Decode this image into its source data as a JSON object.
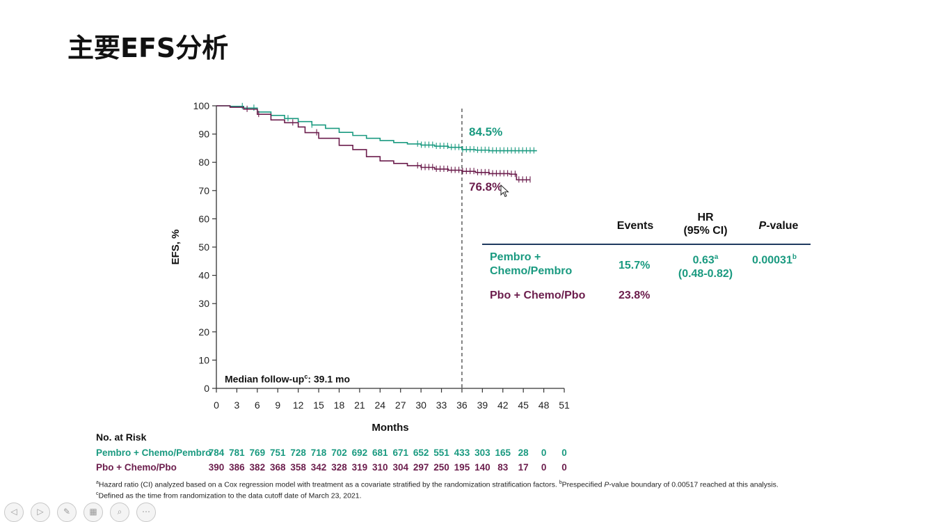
{
  "slide": {
    "title": "主要EFS分析"
  },
  "chart_data": {
    "type": "line",
    "xlabel": "Months",
    "ylabel": "EFS, %",
    "xlim": [
      0,
      51
    ],
    "ylim": [
      0,
      100
    ],
    "x_ticks": [
      0,
      3,
      6,
      9,
      12,
      15,
      18,
      21,
      24,
      27,
      30,
      33,
      36,
      39,
      42,
      45,
      48,
      51
    ],
    "y_ticks": [
      0,
      10,
      20,
      30,
      40,
      50,
      60,
      70,
      80,
      90,
      100
    ],
    "reference_line_x": 36,
    "annotation": {
      "prefix": "Median follow-up",
      "sup": "c",
      "suffix": ": 39.1 mo"
    },
    "series": [
      {
        "name": "Pembro + Chemo/Pembro",
        "color": "#1a9a80",
        "label_at_36": "84.5%",
        "points": [
          [
            0,
            100
          ],
          [
            2,
            99.8
          ],
          [
            4,
            99.2
          ],
          [
            6,
            97.8
          ],
          [
            8,
            96.6
          ],
          [
            10,
            95.5
          ],
          [
            12,
            94.4
          ],
          [
            14,
            93.2
          ],
          [
            16,
            92
          ],
          [
            18,
            90.6
          ],
          [
            20,
            89.5
          ],
          [
            22,
            88.5
          ],
          [
            24,
            87.7
          ],
          [
            26,
            87
          ],
          [
            28,
            86.5
          ],
          [
            30,
            86.1
          ],
          [
            32,
            85.7
          ],
          [
            34,
            85.3
          ],
          [
            36,
            84.5
          ],
          [
            38,
            84.3
          ],
          [
            40,
            84.1
          ],
          [
            42,
            84.1
          ],
          [
            44,
            84.1
          ],
          [
            46,
            84.1
          ],
          [
            47,
            84.1
          ]
        ]
      },
      {
        "name": "Pbo + Chemo/Pbo",
        "color": "#6b1d4c",
        "label_at_36": "76.8%",
        "points": [
          [
            0,
            100
          ],
          [
            2,
            99.5
          ],
          [
            4,
            98.8
          ],
          [
            6,
            97
          ],
          [
            8,
            95
          ],
          [
            10,
            94
          ],
          [
            12,
            92.5
          ],
          [
            13,
            90.5
          ],
          [
            15,
            88.5
          ],
          [
            18,
            86
          ],
          [
            20,
            84.5
          ],
          [
            22,
            82
          ],
          [
            24,
            80.5
          ],
          [
            26,
            79.6
          ],
          [
            28,
            78.8
          ],
          [
            30,
            78.2
          ],
          [
            32,
            77.6
          ],
          [
            34,
            77.2
          ],
          [
            36,
            76.8
          ],
          [
            38,
            76.4
          ],
          [
            40,
            76
          ],
          [
            42,
            76
          ],
          [
            43,
            75.8
          ],
          [
            44,
            73.8
          ],
          [
            46,
            73.8
          ]
        ]
      }
    ]
  },
  "stats_table": {
    "headers": {
      "events": "Events",
      "hr_line1": "HR",
      "hr_line2": "(95% CI)",
      "p_italic": "P",
      "p_rest": "-value"
    },
    "rows": [
      {
        "arm_line1": "Pembro +",
        "arm_line2": "Chemo/Pembro",
        "events": "15.7%",
        "hr_value": "0.63",
        "hr_sup": "a",
        "hr_ci": "(0.48-0.82)",
        "p_value": "0.00031",
        "p_sup": "b"
      },
      {
        "arm_line1": "Pbo + Chemo/Pbo",
        "events": "23.8%"
      }
    ]
  },
  "risk_table": {
    "title": "No. at Risk",
    "rows": [
      {
        "label": "Pembro + Chemo/Pembro",
        "values": [
          "784",
          "781",
          "769",
          "751",
          "728",
          "718",
          "702",
          "692",
          "681",
          "671",
          "652",
          "551",
          "433",
          "303",
          "165",
          "28",
          "0",
          "0"
        ]
      },
      {
        "label": "Pbo + Chemo/Pbo",
        "values": [
          "390",
          "386",
          "382",
          "368",
          "358",
          "342",
          "328",
          "319",
          "310",
          "304",
          "297",
          "250",
          "195",
          "140",
          "83",
          "17",
          "0",
          "0"
        ]
      }
    ]
  },
  "footnotes": {
    "a_sup": "a",
    "a_text": "Hazard ratio (CI) analyzed based on a Cox regression model with treatment as a covariate stratified by the randomization stratification factors. ",
    "b_sup": "b",
    "b_text_1": "Prespecified ",
    "b_italic": "P",
    "b_text_2": "-value boundary of 0.00517 reached at this analysis.",
    "c_sup": "c",
    "c_text": "Defined as the time from randomization to the data cutoff date of March 23, 2021."
  }
}
